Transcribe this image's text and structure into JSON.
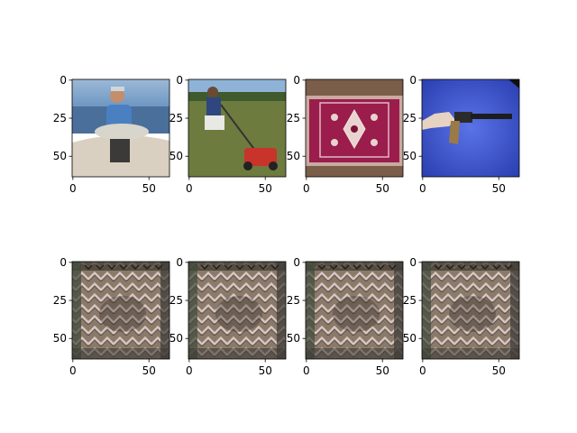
{
  "chart_data": [
    {
      "type": "image",
      "row": 0,
      "col": 0,
      "content": "photo",
      "description_id": "fisherman-holding-fish",
      "image_size": [
        64,
        64
      ],
      "xticks": [
        0,
        50
      ],
      "yticks": [
        0,
        25,
        50
      ],
      "tick_labels_x": [
        "0",
        "50"
      ],
      "tick_labels_y": [
        "0",
        "25",
        "50"
      ]
    },
    {
      "type": "image",
      "row": 0,
      "col": 1,
      "content": "photo",
      "description_id": "man-pushing-lawn-mower",
      "image_size": [
        64,
        64
      ],
      "xticks": [
        0,
        50
      ],
      "yticks": [
        0,
        25,
        50
      ],
      "tick_labels_x": [
        "0",
        "50"
      ],
      "tick_labels_y": [
        "0",
        "25",
        "50"
      ]
    },
    {
      "type": "image",
      "row": 0,
      "col": 2,
      "content": "photo",
      "description_id": "magenta-prayer-rug",
      "image_size": [
        64,
        64
      ],
      "xticks": [
        0,
        50
      ],
      "yticks": [
        0,
        25,
        50
      ],
      "tick_labels_x": [
        "0",
        "50"
      ],
      "tick_labels_y": [
        "0",
        "25",
        "50"
      ]
    },
    {
      "type": "image",
      "row": 0,
      "col": 3,
      "content": "photo",
      "description_id": "hand-holding-revolver",
      "image_size": [
        64,
        64
      ],
      "xticks": [
        0,
        50
      ],
      "yticks": [
        0,
        25,
        50
      ],
      "tick_labels_x": [
        "0",
        "50"
      ],
      "tick_labels_y": [
        "0",
        "25",
        "50"
      ]
    },
    {
      "type": "image",
      "row": 1,
      "col": 0,
      "content": "texture",
      "description_id": "chevron-texture-reconstruction",
      "image_size": [
        64,
        64
      ],
      "xticks": [
        0,
        50
      ],
      "yticks": [
        0,
        25,
        50
      ],
      "tick_labels_x": [
        "0",
        "50"
      ],
      "tick_labels_y": [
        "0",
        "25",
        "50"
      ]
    },
    {
      "type": "image",
      "row": 1,
      "col": 1,
      "content": "texture",
      "description_id": "chevron-texture-reconstruction",
      "image_size": [
        64,
        64
      ],
      "xticks": [
        0,
        50
      ],
      "yticks": [
        0,
        25,
        50
      ],
      "tick_labels_x": [
        "0",
        "50"
      ],
      "tick_labels_y": [
        "0",
        "25",
        "50"
      ]
    },
    {
      "type": "image",
      "row": 1,
      "col": 2,
      "content": "texture",
      "description_id": "chevron-texture-reconstruction",
      "image_size": [
        64,
        64
      ],
      "xticks": [
        0,
        50
      ],
      "yticks": [
        0,
        25,
        50
      ],
      "tick_labels_x": [
        "0",
        "50"
      ],
      "tick_labels_y": [
        "0",
        "25",
        "50"
      ]
    },
    {
      "type": "image",
      "row": 1,
      "col": 3,
      "content": "texture",
      "description_id": "chevron-texture-reconstruction",
      "image_size": [
        64,
        64
      ],
      "xticks": [
        0,
        50
      ],
      "yticks": [
        0,
        25,
        50
      ],
      "tick_labels_x": [
        "0",
        "50"
      ],
      "tick_labels_y": [
        "0",
        "25",
        "50"
      ]
    }
  ],
  "colors": {
    "background": "#ffffff",
    "axes": "#000000",
    "sky": "#7fa7cf",
    "water": "#4a6f9a",
    "boat": "#d9d0c2",
    "grass": "#6d7b3f",
    "rug": "#9a1d4c",
    "rug_border": "#c9a9a0",
    "gun_bg": "#3d57d6",
    "texture_base": "#8b7a6a",
    "texture_light": "#d7c5bf",
    "texture_dark": "#3d3a36"
  }
}
